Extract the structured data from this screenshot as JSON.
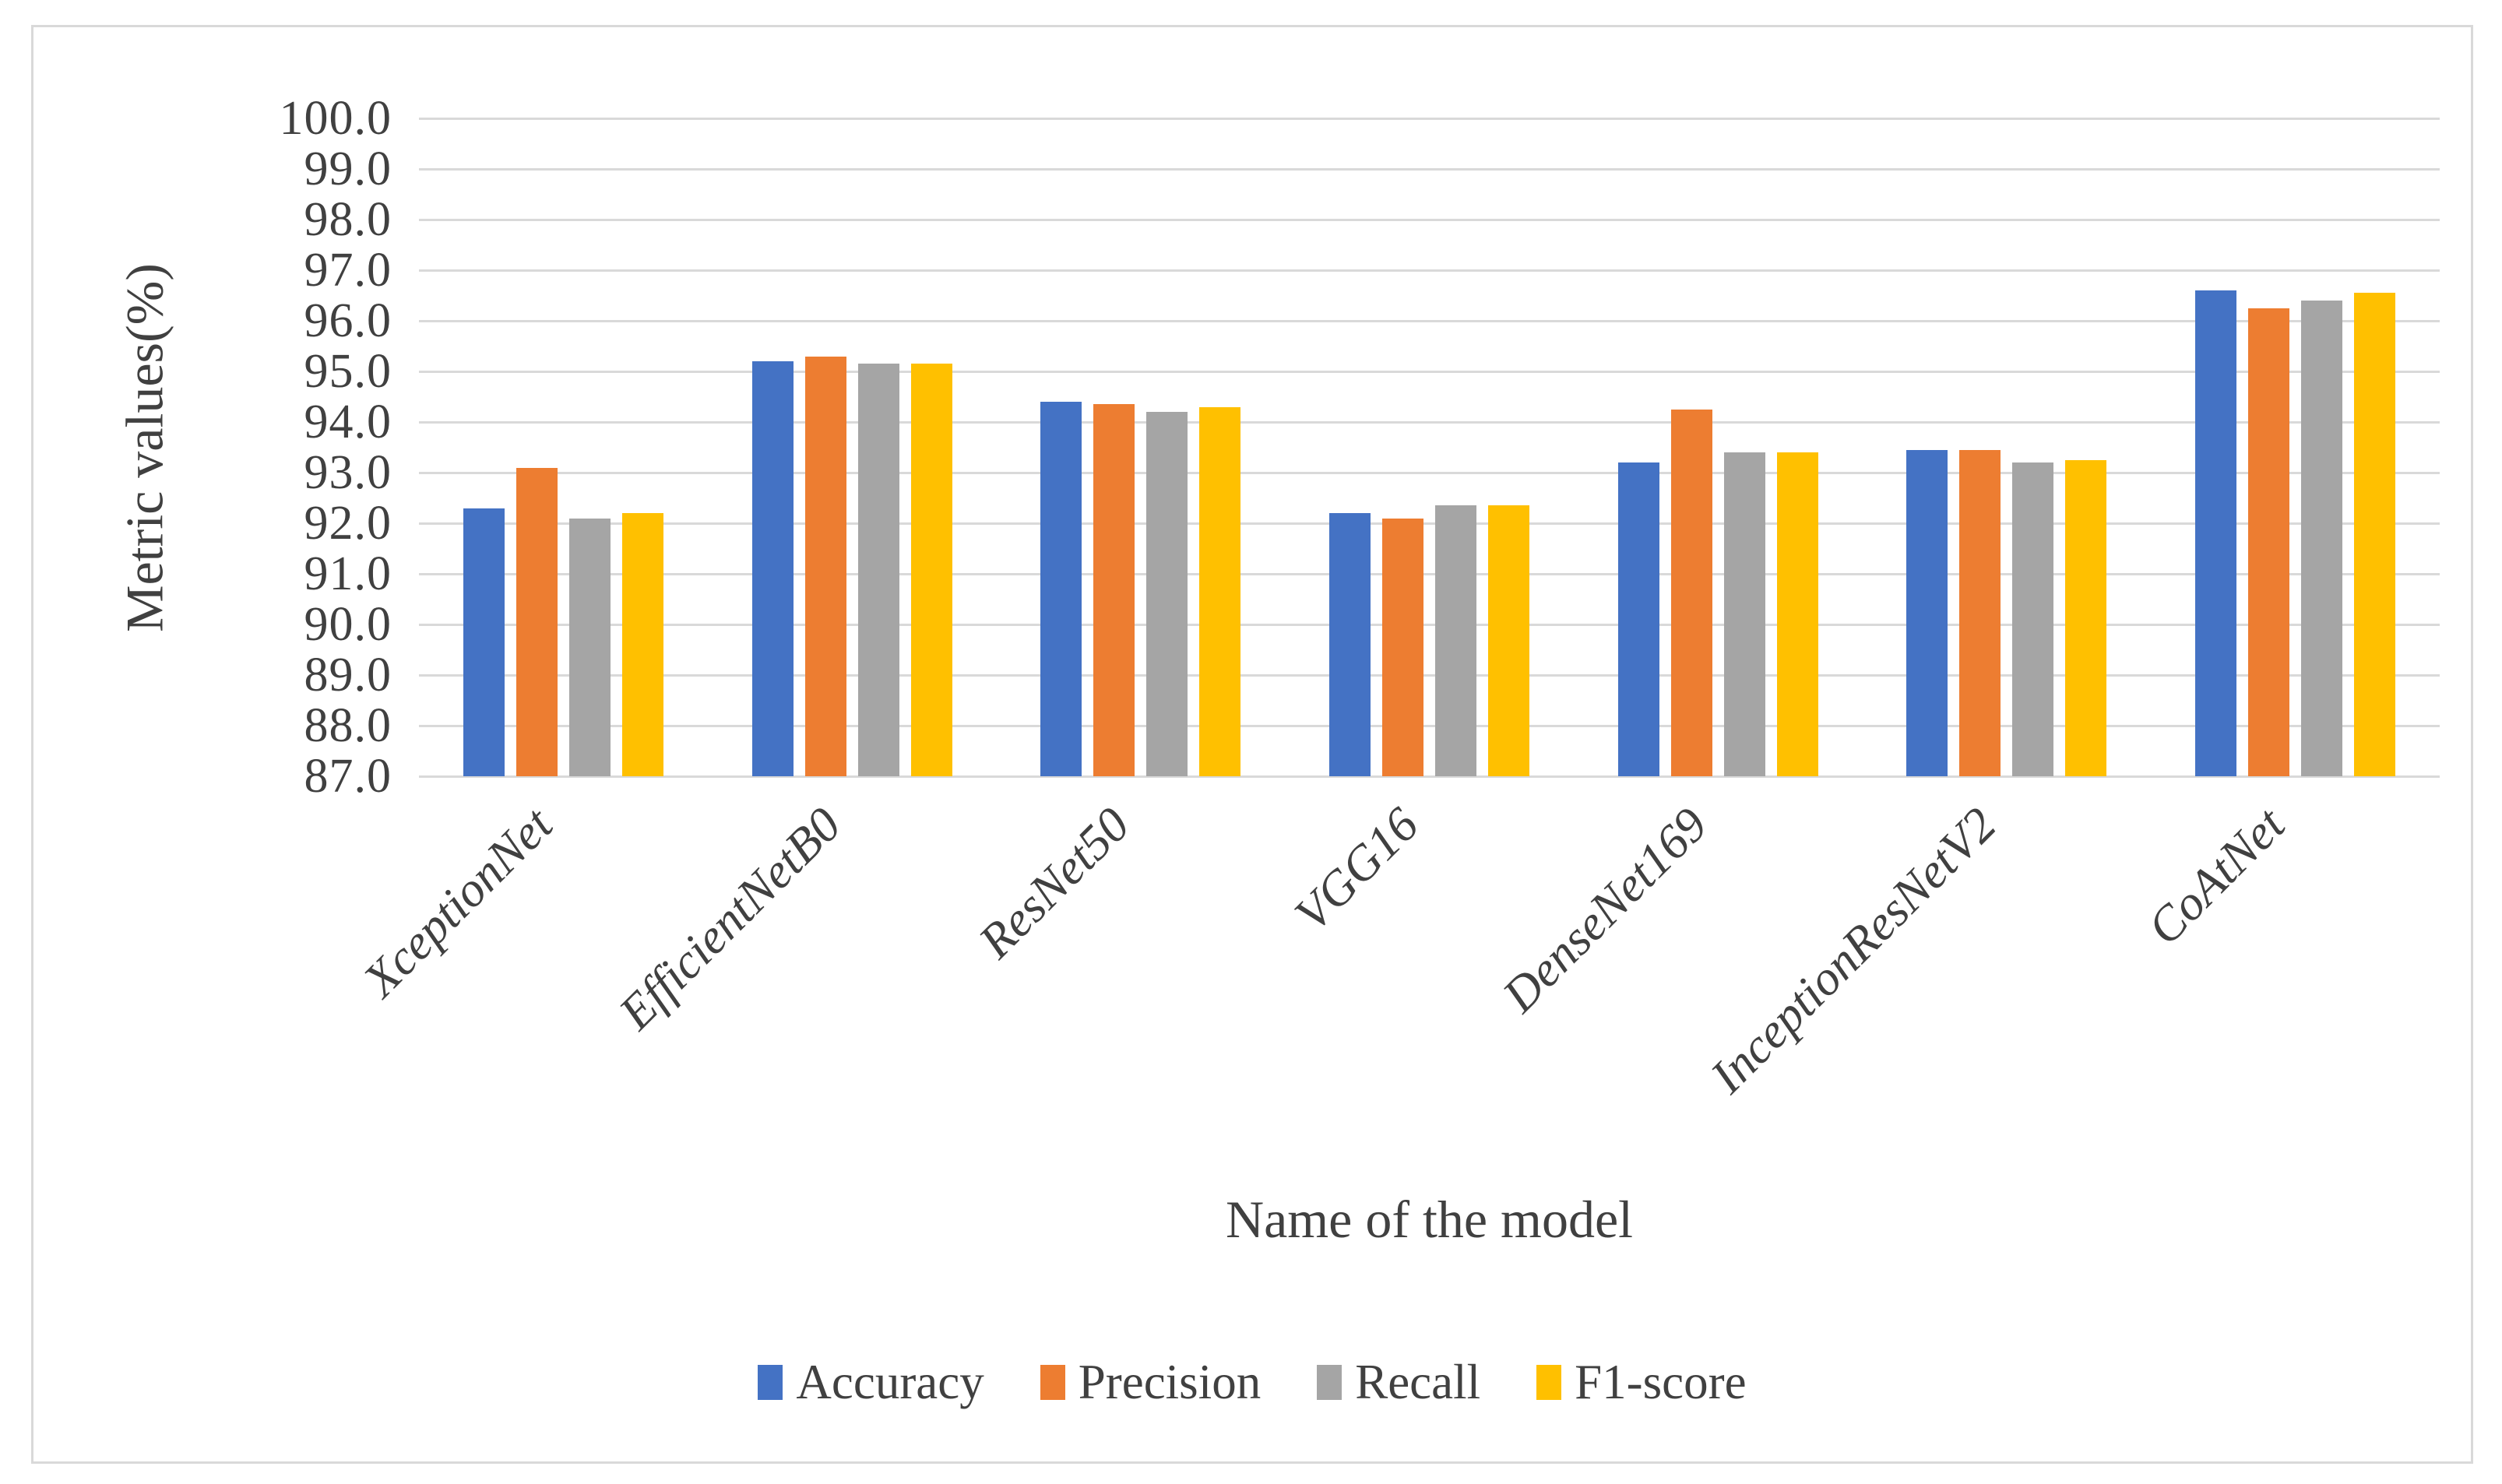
{
  "figure": {
    "background": "#ffffff",
    "border_color": "#d9d9d9"
  },
  "chart_data": {
    "type": "bar",
    "title": "",
    "xlabel": "Name of the model",
    "ylabel": "Metric values(%)",
    "categories": [
      "XceptionNet",
      "EfficientNetB0",
      "ResNet50",
      "VGG16",
      "DenseNet169",
      "InceptionResNetV2",
      "CoAtNet"
    ],
    "series": [
      {
        "name": "Accuracy",
        "color": "#4472c4",
        "values": [
          92.3,
          95.2,
          94.4,
          92.2,
          93.2,
          93.45,
          96.6
        ]
      },
      {
        "name": "Precision",
        "color": "#ed7d31",
        "values": [
          93.1,
          95.3,
          94.35,
          92.1,
          94.25,
          93.45,
          96.25
        ]
      },
      {
        "name": "Recall",
        "color": "#a5a5a5",
        "values": [
          92.1,
          95.15,
          94.2,
          92.35,
          93.4,
          93.2,
          96.4
        ]
      },
      {
        "name": "F1-score",
        "color": "#ffc000",
        "values": [
          92.2,
          95.15,
          94.3,
          92.35,
          93.4,
          93.25,
          96.55
        ]
      }
    ],
    "ylim": [
      87.0,
      100.0
    ],
    "ytick_step": 1.0,
    "ytick_labels": [
      "87.0",
      "88.0",
      "89.0",
      "90.0",
      "91.0",
      "92.0",
      "93.0",
      "94.0",
      "95.0",
      "96.0",
      "97.0",
      "98.0",
      "99.0",
      "100.0"
    ],
    "grid": "horizontal",
    "gridline_color": "#d9d9d9",
    "text_color": "#404040",
    "legend_position": "bottom"
  }
}
